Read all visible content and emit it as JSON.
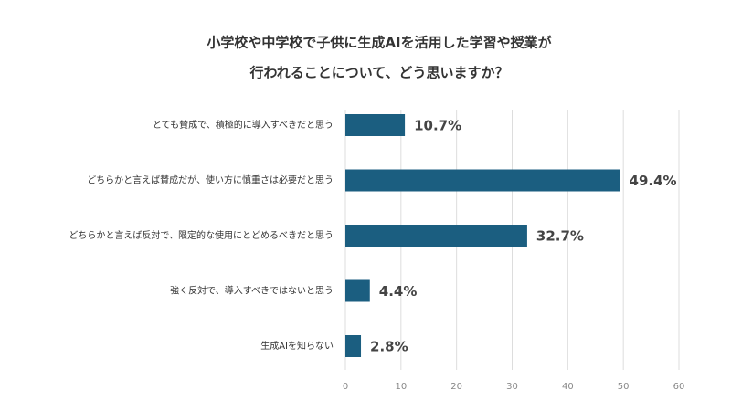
{
  "chart_data": {
    "type": "bar",
    "orientation": "horizontal",
    "title": [
      "小学校や中学校で子供に生成AIを活用した学習や授業が",
      "行われることについて、どう思いますか？"
    ],
    "categories": [
      "とても賛成で、積極的に導入すべきだと思う",
      "どちらかと言えば賛成だが、使い方に慎重さは必要だと思う",
      "どちらかと言えば反対で、限定的な使用にとどめるべきだと思う",
      "強く反対で、導入すべきではないと思う",
      "生成AIを知らない"
    ],
    "values": [
      10.7,
      49.4,
      32.7,
      4.4,
      2.8
    ],
    "value_labels": [
      "10.7%",
      "49.4%",
      "32.7%",
      "4.4%",
      "2.8%"
    ],
    "color": "#1b5e80",
    "xlim": [
      0,
      60
    ],
    "xticks": [
      0,
      10,
      20,
      30,
      40,
      50,
      60
    ],
    "grid": true
  }
}
